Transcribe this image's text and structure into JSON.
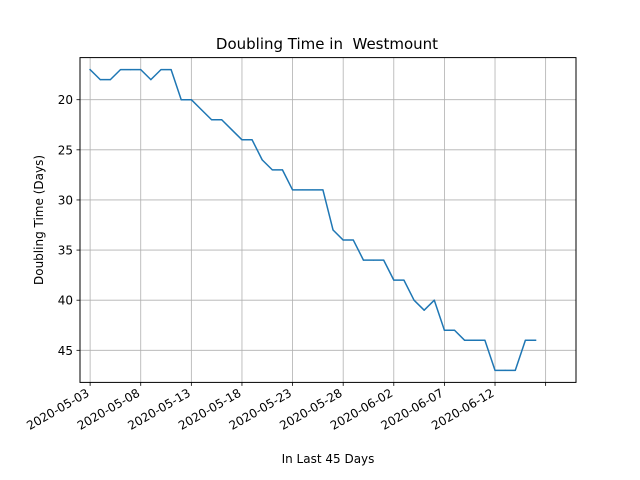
{
  "chart_data": {
    "type": "line",
    "title": "Doubling Time in  Westmount",
    "xlabel": "In Last 45 Days",
    "ylabel": "Doubling Time (Days)",
    "y_inverted": true,
    "ylim": [
      48.2,
      15.8
    ],
    "xlim": [
      "2020-05-02",
      "2020-06-20"
    ],
    "grid": true,
    "x_ticks": [
      "2020-05-03",
      "2020-05-08",
      "2020-05-13",
      "2020-05-18",
      "2020-05-23",
      "2020-05-28",
      "2020-06-02",
      "2020-06-07",
      "2020-06-12",
      ""
    ],
    "y_ticks": [
      20,
      25,
      30,
      35,
      40,
      45
    ],
    "series": [
      {
        "color": "#1f77b4",
        "x": [
          "2020-05-03",
          "2020-05-04",
          "2020-05-05",
          "2020-05-06",
          "2020-05-07",
          "2020-05-08",
          "2020-05-09",
          "2020-05-10",
          "2020-05-11",
          "2020-05-12",
          "2020-05-13",
          "2020-05-14",
          "2020-05-15",
          "2020-05-16",
          "2020-05-17",
          "2020-05-18",
          "2020-05-19",
          "2020-05-20",
          "2020-05-21",
          "2020-05-22",
          "2020-05-23",
          "2020-05-24",
          "2020-05-25",
          "2020-05-26",
          "2020-05-27",
          "2020-05-28",
          "2020-05-29",
          "2020-05-30",
          "2020-05-31",
          "2020-06-01",
          "2020-06-02",
          "2020-06-03",
          "2020-06-04",
          "2020-06-05",
          "2020-06-06",
          "2020-06-07",
          "2020-06-08",
          "2020-06-09",
          "2020-06-10",
          "2020-06-11",
          "2020-06-12",
          "2020-06-13",
          "2020-06-14",
          "2020-06-15",
          "2020-06-16"
        ],
        "y": [
          17,
          18,
          18,
          17,
          17,
          17,
          18,
          17,
          17,
          20,
          20,
          21,
          22,
          22,
          23,
          24,
          24,
          26,
          27,
          27,
          29,
          29,
          29,
          29,
          33,
          34,
          34,
          36,
          36,
          36,
          38,
          38,
          40,
          41,
          40,
          43,
          43,
          44,
          44,
          44,
          47,
          47,
          47,
          44,
          44
        ]
      }
    ]
  }
}
